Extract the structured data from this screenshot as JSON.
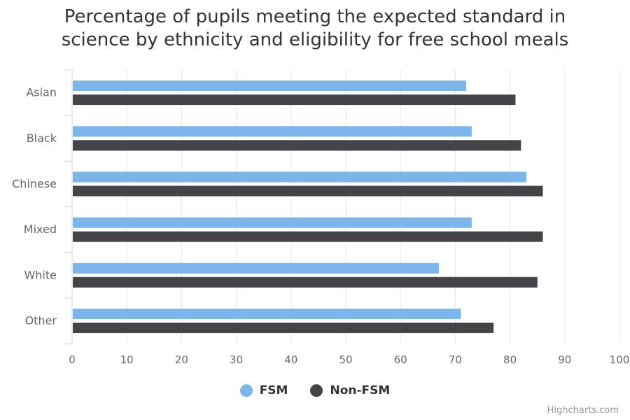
{
  "chart_data": {
    "type": "bar",
    "orientation": "horizontal",
    "title": "Percentage of pupils meeting the expected standard in science by ethnicity and eligibility for free school meals",
    "title_lines": [
      "Percentage of pupils meeting the expected standard in",
      "science by ethnicity and eligibility for free school meals"
    ],
    "categories": [
      "Asian",
      "Black",
      "Chinese",
      "Mixed",
      "White",
      "Other"
    ],
    "series": [
      {
        "name": "FSM",
        "color": "#7cb5ec",
        "values": [
          72,
          73,
          83,
          73,
          67,
          71
        ]
      },
      {
        "name": "Non-FSM",
        "color": "#434348",
        "values": [
          81,
          82,
          86,
          86,
          85,
          77
        ]
      }
    ],
    "xlim": [
      0,
      100
    ],
    "ticks": [
      0,
      10,
      20,
      30,
      40,
      50,
      60,
      70,
      80,
      90,
      100
    ],
    "grid": true,
    "legend_position": "bottom-center"
  },
  "credits": "Highcharts.com"
}
